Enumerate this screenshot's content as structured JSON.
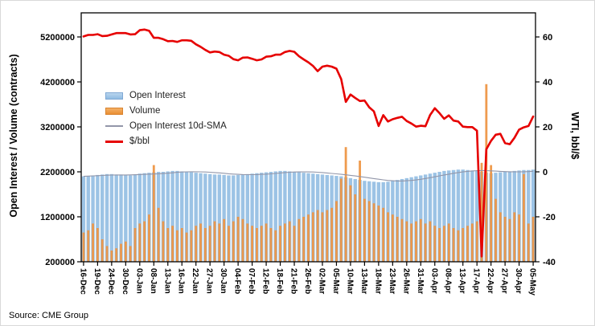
{
  "figure": {
    "source_note": "Source: CME Group"
  },
  "chart_data": {
    "type": "combo-bar-line",
    "title": "",
    "ylabel_left": "Open Interest / Volume (contracts)",
    "ylabel_right": "WTI, bbl/$",
    "grid": false,
    "legend_position": "inside-upper-left",
    "left_axis": {
      "min": 200000,
      "max": 5750000,
      "ticks": [
        200000,
        1200000,
        2200000,
        3200000,
        4200000,
        5200000
      ]
    },
    "right_axis": {
      "min": -40,
      "max": 60,
      "ticks": [
        -40,
        -20,
        0,
        20,
        40,
        60
      ]
    },
    "x_tick_step": 3,
    "x_tick_labels": [
      "16-Dec",
      "19-Dec",
      "24-Dec",
      "30-Dec",
      "03-Jan",
      "08-Jan",
      "13-Jan",
      "16-Jan",
      "22-Jan",
      "27-Jan",
      "30-Jan",
      "04-Feb",
      "07-Feb",
      "12-Feb",
      "18-Feb",
      "21-Feb",
      "26-Feb",
      "02-Mar",
      "05-Mar",
      "10-Mar",
      "13-Mar",
      "18-Mar",
      "23-Mar",
      "26-Mar",
      "31-Mar",
      "03-Apr",
      "08-Apr",
      "13-Apr",
      "17-Apr",
      "22-Apr",
      "27-Apr",
      "30-Apr",
      "05-May"
    ],
    "series": [
      {
        "name": "Open Interest",
        "type": "bar",
        "axis": "left",
        "color": "#9cc3e5",
        "values": [
          2100000,
          2110000,
          2120000,
          2130000,
          2140000,
          2150000,
          2150000,
          2140000,
          2140000,
          2130000,
          2120000,
          2140000,
          2160000,
          2170000,
          2180000,
          2190000,
          2200000,
          2200000,
          2210000,
          2220000,
          2220000,
          2210000,
          2200000,
          2190000,
          2180000,
          2170000,
          2160000,
          2150000,
          2140000,
          2140000,
          2130000,
          2120000,
          2120000,
          2130000,
          2140000,
          2150000,
          2160000,
          2170000,
          2180000,
          2190000,
          2200000,
          2210000,
          2220000,
          2220000,
          2210000,
          2200000,
          2190000,
          2180000,
          2170000,
          2160000,
          2150000,
          2140000,
          2130000,
          2120000,
          2110000,
          2100000,
          2080000,
          2060000,
          2040000,
          2020000,
          2000000,
          1990000,
          1980000,
          1970000,
          1970000,
          1980000,
          2000000,
          2020000,
          2040000,
          2060000,
          2080000,
          2100000,
          2120000,
          2140000,
          2160000,
          2180000,
          2200000,
          2220000,
          2230000,
          2240000,
          2250000,
          2250000,
          2240000,
          2230000,
          2220000,
          2200000,
          2180000,
          2170000,
          2180000,
          2190000,
          2200000,
          2210000,
          2220000,
          2230000,
          2240000,
          2240000,
          2250000
        ]
      },
      {
        "name": "Volume",
        "type": "bar",
        "axis": "left",
        "color": "#ee9644",
        "values": [
          850000,
          900000,
          1050000,
          950000,
          700000,
          550000,
          450000,
          500000,
          600000,
          650000,
          550000,
          950000,
          1050000,
          1100000,
          1250000,
          2350000,
          1400000,
          1100000,
          950000,
          1000000,
          900000,
          950000,
          850000,
          900000,
          1000000,
          1050000,
          950000,
          1000000,
          1100000,
          1050000,
          1150000,
          1000000,
          1100000,
          1200000,
          1150000,
          1050000,
          1000000,
          950000,
          1000000,
          1050000,
          950000,
          900000,
          1000000,
          1050000,
          1100000,
          1000000,
          1150000,
          1200000,
          1250000,
          1300000,
          1350000,
          1300000,
          1350000,
          1400000,
          1550000,
          2050000,
          2750000,
          1900000,
          1700000,
          2450000,
          1600000,
          1550000,
          1500000,
          1450000,
          1400000,
          1300000,
          1250000,
          1200000,
          1150000,
          1100000,
          1050000,
          1100000,
          1150000,
          1050000,
          1100000,
          1000000,
          950000,
          1000000,
          1050000,
          950000,
          900000,
          950000,
          1000000,
          1050000,
          1100000,
          2400000,
          4150000,
          2350000,
          1600000,
          1300000,
          1200000,
          1150000,
          1300000,
          1250000,
          2150000,
          1050000,
          1200000
        ]
      },
      {
        "name": "Open Interest 10d-SMA",
        "type": "line",
        "axis": "left",
        "color": "#9296a9",
        "window": 10,
        "derived_from": "Open Interest"
      },
      {
        "name": "$/bbl",
        "type": "line",
        "axis": "right",
        "color": "#e60000",
        "values": [
          60.2,
          60.9,
          60.9,
          61.2,
          60.4,
          60.5,
          61.1,
          61.7,
          61.7,
          61.7,
          61.1,
          61.2,
          63.0,
          63.3,
          62.7,
          59.6,
          59.6,
          59.0,
          58.1,
          58.2,
          57.8,
          58.5,
          58.5,
          58.3,
          56.7,
          55.6,
          54.2,
          53.1,
          53.5,
          53.3,
          52.1,
          51.6,
          50.1,
          49.6,
          50.8,
          50.9,
          50.3,
          49.6,
          50.0,
          51.2,
          51.4,
          52.1,
          52.1,
          53.3,
          53.8,
          53.4,
          51.4,
          50.0,
          48.7,
          47.1,
          44.8,
          46.8,
          47.2,
          46.8,
          45.9,
          41.3,
          31.1,
          34.4,
          32.9,
          31.5,
          31.7,
          28.7,
          26.9,
          20.4,
          25.2,
          22.4,
          23.4,
          24.0,
          24.5,
          22.6,
          21.5,
          20.1,
          20.5,
          20.3,
          25.3,
          28.3,
          26.1,
          23.6,
          25.1,
          22.8,
          22.4,
          20.1,
          19.9,
          19.9,
          18.3,
          -37.6,
          10.0,
          13.8,
          16.5,
          16.9,
          12.8,
          12.3,
          15.1,
          18.8,
          19.8,
          20.4,
          24.6
        ]
      }
    ]
  }
}
